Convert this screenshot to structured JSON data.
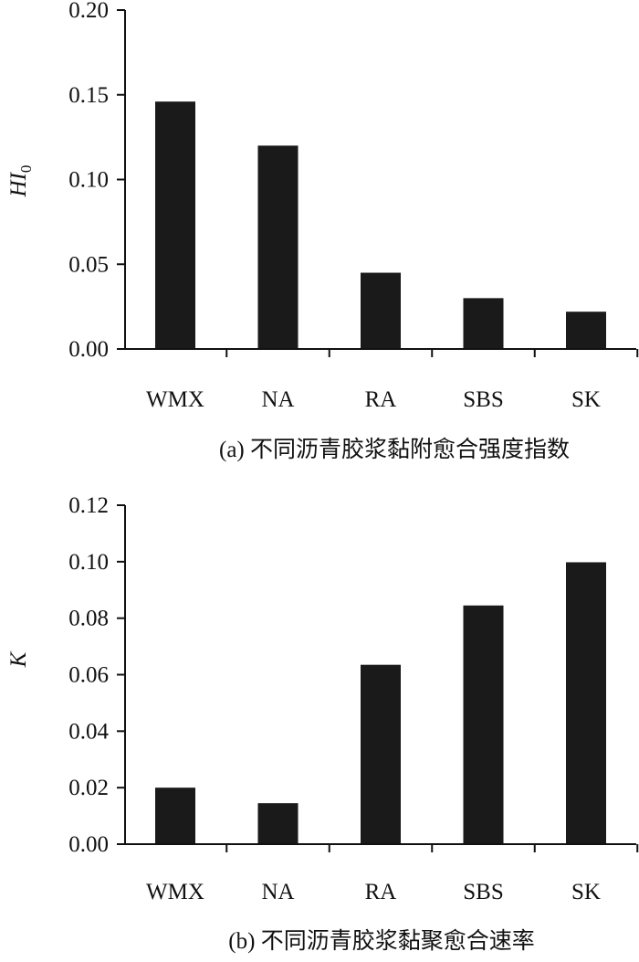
{
  "chart_data": [
    {
      "type": "bar",
      "categories": [
        "WMX",
        "NA",
        "RA",
        "SBS",
        "SK"
      ],
      "values": [
        0.146,
        0.12,
        0.045,
        0.03,
        0.022
      ],
      "ylabel": "HI",
      "ylabel_sub": "0",
      "ylim": [
        0,
        0.2
      ],
      "yticks": [
        "0.00",
        "0.05",
        "0.10",
        "0.15",
        "0.20"
      ],
      "bar_color": "#1a1a1a",
      "grid": false,
      "caption": "(a) 不同沥青胶浆黏附愈合强度指数"
    },
    {
      "type": "bar",
      "categories": [
        "WMX",
        "NA",
        "RA",
        "SBS",
        "SK"
      ],
      "values": [
        0.02,
        0.0145,
        0.0635,
        0.0845,
        0.0998
      ],
      "ylabel": "K",
      "ylim": [
        0,
        0.12
      ],
      "yticks": [
        "0.00",
        "0.02",
        "0.04",
        "0.06",
        "0.08",
        "0.10",
        "0.12"
      ],
      "bar_color": "#1a1a1a",
      "grid": false,
      "caption": "(b) 不同沥青胶浆黏聚愈合速率"
    }
  ]
}
